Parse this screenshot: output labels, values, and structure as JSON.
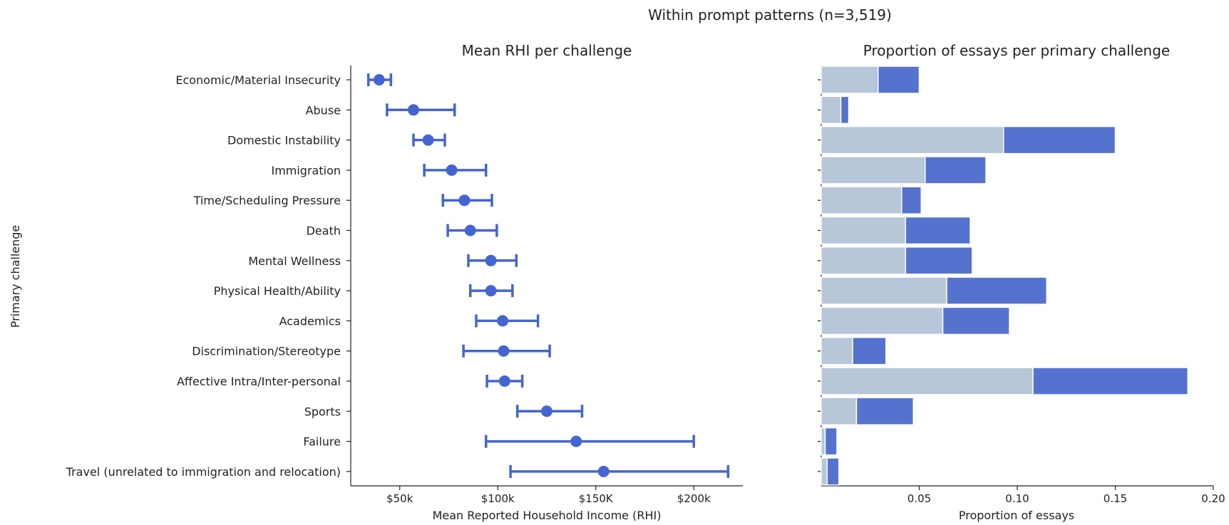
{
  "chart_data": [
    {
      "type": "scatter",
      "title": "Mean RHI per challenge",
      "suptitle": "Within prompt patterns (n=3,519)",
      "xlabel": "Mean Reported Household Income (RHI)",
      "ylabel": "Primary challenge",
      "xlim": [
        25000,
        225000
      ],
      "xticks": [
        {
          "value": 50000,
          "label": "$50k"
        },
        {
          "value": 100000,
          "label": "$100k"
        },
        {
          "value": 150000,
          "label": "$150K"
        },
        {
          "value": 200000,
          "label": "$200k"
        }
      ],
      "categories": [
        "Economic/Material Insecurity",
        "Abuse",
        "Domestic Instability",
        "Immigration",
        "Time/Scheduling Pressure",
        "Death",
        "Mental Wellness",
        "Physical Health/Ability",
        "Academics",
        "Discrimination/Stereotype",
        "Affective Intra/Inter-personal",
        "Sports",
        "Failure",
        "Travel (unrelated to immigration and relocation)"
      ],
      "means": [
        39500,
        57000,
        64500,
        76500,
        83000,
        86000,
        96500,
        96500,
        102500,
        103000,
        103500,
        125000,
        140000,
        154000
      ],
      "ci_low": [
        34000,
        43500,
        57000,
        62500,
        72000,
        74500,
        85000,
        86000,
        89000,
        82500,
        94500,
        110000,
        94000,
        106500
      ],
      "ci_high": [
        45500,
        78000,
        73000,
        94000,
        97000,
        99500,
        109500,
        107500,
        120500,
        126500,
        112500,
        143000,
        200000,
        217500
      ],
      "color": "#4464d0"
    },
    {
      "type": "bar",
      "orientation": "horizontal",
      "stacked": true,
      "title": "Proportion of essays per primary challenge",
      "xlabel": "Proportion of essays",
      "xlim": [
        0,
        0.2
      ],
      "xticks": [
        {
          "value": 0.05,
          "label": "0.05"
        },
        {
          "value": 0.1,
          "label": "0.10"
        },
        {
          "value": 0.15,
          "label": "0.15"
        },
        {
          "value": 0.2,
          "label": "0.20"
        }
      ],
      "categories": [
        "Economic/Material Insecurity",
        "Abuse",
        "Domestic Instability",
        "Immigration",
        "Time/Scheduling Pressure",
        "Death",
        "Mental Wellness",
        "Physical Health/Ability",
        "Academics",
        "Discrimination/Stereotype",
        "Affective Intra/Inter-personal",
        "Sports",
        "Failure",
        "Travel (unrelated to immigration and relocation)"
      ],
      "series": [
        {
          "values": [
            0.029,
            0.01,
            0.093,
            0.053,
            0.041,
            0.043,
            0.043,
            0.064,
            0.062,
            0.016,
            0.108,
            0.018,
            0.002,
            0.003
          ],
          "color": "#b7c6d9"
        },
        {
          "values": [
            0.021,
            0.004,
            0.057,
            0.031,
            0.01,
            0.033,
            0.034,
            0.051,
            0.034,
            0.017,
            0.079,
            0.029,
            0.006,
            0.006
          ],
          "color": "#5672cf"
        }
      ]
    }
  ]
}
